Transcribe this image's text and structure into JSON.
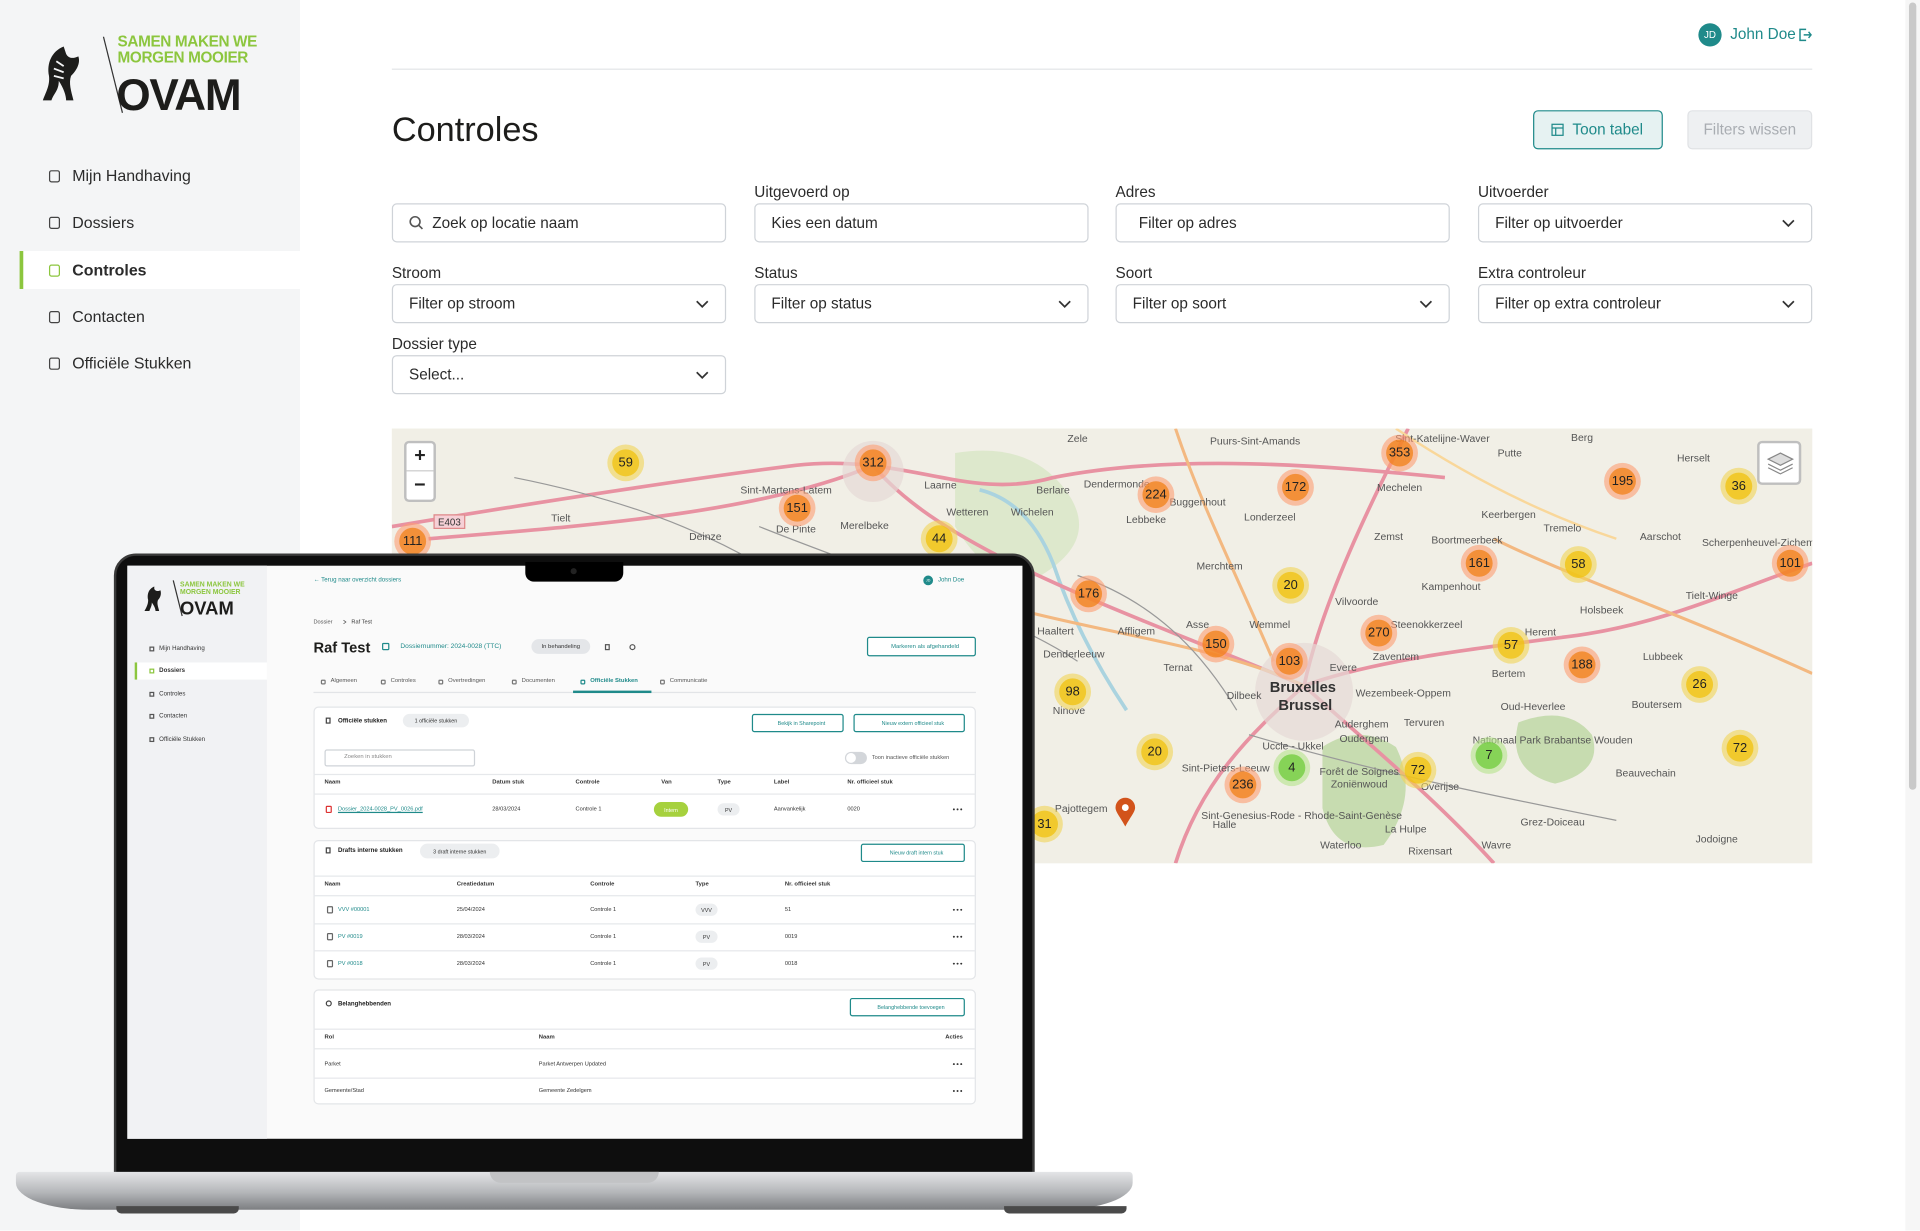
{
  "sidebar": {
    "logo_line1": "SAMEN MAKEN WE",
    "logo_line2": "MORGEN MOOIER",
    "logo_name": "OVAM",
    "nav": [
      "Mijn Handhaving",
      "Dossiers",
      "Controles",
      "Contacten",
      "Officiële Stukken"
    ]
  },
  "header": {
    "initials": "JD",
    "user": "John Doe"
  },
  "title": "Controles",
  "buttons": {
    "table": "Toon tabel",
    "clear": "Filters wissen"
  },
  "filters": [
    {
      "placeholder": "Zoek op locatie naam"
    },
    {
      "label": "Uitgevoerd op",
      "placeholder": "Kies een datum"
    },
    {
      "label": "Adres",
      "placeholder": "Filter op adres"
    },
    {
      "label": "Uitvoerder",
      "placeholder": "Filter op uitvoerder"
    },
    {
      "label": "Stroom",
      "placeholder": "Filter op stroom"
    },
    {
      "label": "Status",
      "placeholder": "Filter op status"
    },
    {
      "label": "Soort",
      "placeholder": "Filter op soort"
    },
    {
      "label": "Extra controleur",
      "placeholder": "Filter op extra controleur"
    },
    {
      "label": "Dossier type",
      "placeholder": "Select..."
    }
  ],
  "map": {
    "zoom_in": "+",
    "zoom_out": "−",
    "road": "E403",
    "clusters": [
      "59",
      "312",
      "151",
      "44",
      "111",
      "353",
      "172",
      "224",
      "195",
      "36",
      "161",
      "58",
      "101",
      "176",
      "20",
      "270",
      "150",
      "103",
      "57",
      "188",
      "26",
      "98",
      "20",
      "236",
      "4",
      "72",
      "7",
      "72",
      "31"
    ],
    "places": [
      "Zele",
      "Puurs-Sint-Amands",
      "Sint-Katelijne-Waver",
      "Berg",
      "Putte",
      "Herselt",
      "Mechelen",
      "Berlare",
      "Dendermonde",
      "Buggenhout",
      "Londerzeel",
      "Laarne",
      "Wetteren",
      "Wichelen",
      "Lebbeke",
      "Sint-Martens-Latem",
      "De Pinte",
      "Merelbeke",
      "Deinze",
      "Tielt",
      "Keerbergen",
      "Tremelo",
      "Aarschot",
      "Zemst",
      "Boortmeerbeek",
      "Merchtem",
      "Kampenhout",
      "Holsbeek",
      "Tielt-Winge",
      "Scherpenheuvel-Zichem",
      "Haaltert",
      "Affligem",
      "Asse",
      "Wemmel",
      "Vilvoorde",
      "Steenokkerzeel",
      "Zaventem",
      "Herent",
      "Lubbeek",
      "Denderleeuw",
      "Ternat",
      "Dilbeek",
      "Evere",
      "Bertem",
      "Wezembeek-Oppem",
      "Boutersem",
      "Oud-Heverlee",
      "Ninove",
      "Auderghem",
      "Oudergem",
      "Tervuren",
      "Uccle - Ukkel",
      "Nationaal Park Brabantse Wouden",
      "Sint-Pieters-Leeuw",
      "Forêt de Soignes",
      "Zoniënwoud",
      "Overijse",
      "Beauvechain",
      "Pajottegem",
      "Sint-Genesius-Rode - Rhode-Saint-Genèse",
      "Halle",
      "La Hulpe",
      "Grez-Doiceau",
      "Waterloo",
      "Rixensart",
      "Wavre",
      "Jodoigne"
    ],
    "cities": [
      "Bruxelles",
      "Brussel"
    ]
  },
  "laptop": {
    "sidebar": {
      "logo_line1": "SAMEN MAKEN WE",
      "logo_line2": "MORGEN MOOIER",
      "logo_name": "OVAM",
      "nav": [
        "Mijn Handhaving",
        "Dossiers",
        "Controles",
        "Contacten",
        "Officiële Stukken"
      ]
    },
    "back": "← Terug naar overzicht dossiers",
    "initials": "JD",
    "user": "John Doe",
    "breadcrumb": [
      "Dossier",
      "Raf Test"
    ],
    "title": "Raf Test",
    "dossier_number": "Dossiernummer: 2024-0028 (TTC)",
    "status": "In behandeling",
    "mark_done": "Markeren als afgehandeld",
    "tabs": [
      "Algemeen",
      "Controles",
      "Overtredingen",
      "Documenten",
      "Officiële Stukken",
      "Communicatie"
    ],
    "official": {
      "title": "Officiële stukken",
      "count": "1 officiële stukken",
      "buttons": [
        "Bekijk in Sharepoint",
        "Nieuw extern officieel stuk"
      ],
      "search": "Zoeken in stukken",
      "toggle": "Toon inactieve officiële stukken",
      "columns": [
        "Naam",
        "Datum stuk",
        "Controle",
        "Van",
        "Type",
        "Label",
        "Nr. officieel stuk"
      ],
      "rows": [
        [
          "Dossier_2024-0028_PV_0026.pdf",
          "28/03/2024",
          "Controle 1",
          "Intern",
          "PV",
          "Aanvankelijk",
          "0020"
        ]
      ]
    },
    "drafts": {
      "title": "Drafts interne stukken",
      "count": "3 draft interne stukken",
      "button": "Nieuw draft intern stuk",
      "columns": [
        "Naam",
        "Creatiedatum",
        "Controle",
        "Type",
        "Nr. officieel stuk"
      ],
      "rows": [
        [
          "VVV #00001",
          "25/04/2024",
          "Controle 1",
          "VVV",
          "51"
        ],
        [
          "PV #0019",
          "28/03/2024",
          "Controle 1",
          "PV",
          "0019"
        ],
        [
          "PV #0018",
          "28/03/2024",
          "Controle 1",
          "PV",
          "0018"
        ]
      ]
    },
    "stakeholders": {
      "title": "Belanghebbenden",
      "button": "Belanghebbende toevoegen",
      "columns": [
        "Rol",
        "Naam",
        "Acties"
      ],
      "rows": [
        [
          "Parket",
          "Parket Antwerpen Updated"
        ],
        [
          "Gemeente/Stad",
          "Gemeente Zedelgem"
        ]
      ]
    }
  }
}
